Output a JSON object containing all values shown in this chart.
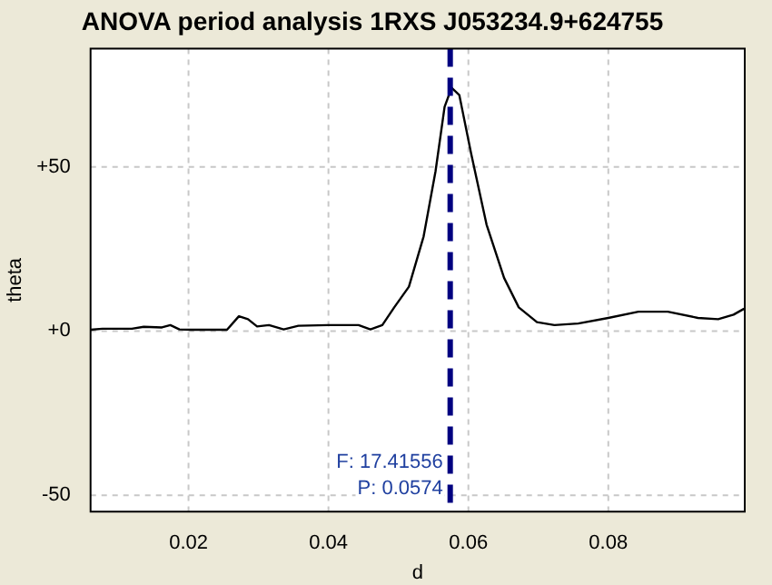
{
  "chart_data": {
    "type": "line",
    "title": "ANOVA period analysis 1RXS J053234.9+624755",
    "xlabel": "d",
    "ylabel": "theta",
    "series": [
      {
        "color": "#000000",
        "x": [
          0.006,
          0.0077,
          0.0119,
          0.0136,
          0.0162,
          0.0174,
          0.0187,
          0.0204,
          0.0255,
          0.0272,
          0.0285,
          0.0298,
          0.0315,
          0.0336,
          0.0357,
          0.04,
          0.0443,
          0.046,
          0.0477,
          0.0494,
          0.0515,
          0.0536,
          0.0553,
          0.0566,
          0.0576,
          0.0587,
          0.0604,
          0.0626,
          0.0651,
          0.0672,
          0.0698,
          0.0723,
          0.0757,
          0.08,
          0.0843,
          0.0885,
          0.0928,
          0.0957,
          0.0979,
          0.0994
        ],
        "values": [
          0.4,
          0.7,
          0.7,
          1.3,
          1.1,
          1.8,
          0.5,
          0.4,
          0.4,
          4.5,
          3.6,
          1.4,
          1.8,
          0.5,
          1.6,
          1.8,
          1.8,
          0.5,
          1.8,
          7.2,
          13.5,
          28.8,
          48.6,
          68.3,
          74.1,
          71.9,
          54,
          32.4,
          16.2,
          7.2,
          2.7,
          1.8,
          2.3,
          4,
          5.9,
          5.9,
          4,
          3.6,
          5,
          6.8
        ]
      }
    ],
    "xlim": [
      0.006,
      0.0995
    ],
    "xticks": [
      0.02,
      0.04,
      0.06,
      0.08
    ],
    "ylim": [
      -55,
      86
    ],
    "yticks": [
      {
        "value": -50,
        "label": "-50"
      },
      {
        "value": 0,
        "label": "+0"
      },
      {
        "value": 50,
        "label": "+50"
      }
    ],
    "grid": true,
    "legend": false,
    "marker": "none",
    "line_style": "solid",
    "ref_lines": [
      {
        "axis": "x",
        "value": 0.0574,
        "color": "#000080",
        "line_style": "dashed"
      }
    ],
    "annotations": [
      {
        "text": "F: 17.41556",
        "x": 0.0574,
        "y": -40
      },
      {
        "text": "P: 0.0574",
        "x": 0.0574,
        "y": -48
      }
    ]
  }
}
